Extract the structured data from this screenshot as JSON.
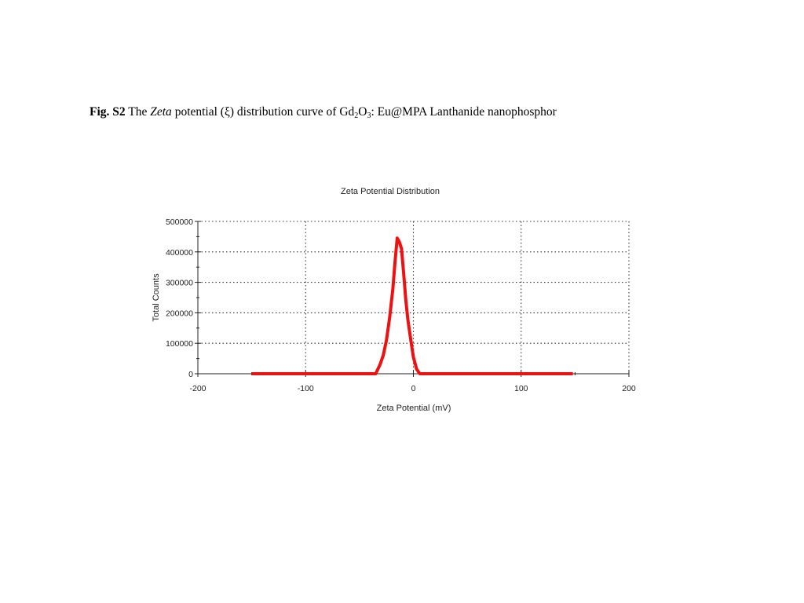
{
  "caption": {
    "figure_label": "Fig. S2",
    "text_1": "The",
    "italic_word": "Zeta",
    "text_2": "potential (ξ) distribution curve of Gd",
    "sub_1": "2",
    "text_3": "O",
    "sub_2": "3",
    "text_4": ": Eu@MPA Lanthanide nanophosphor"
  },
  "chart_data": {
    "type": "line",
    "title": "Zeta Potential Distribution",
    "xlabel": "Zeta Potential (mV)",
    "ylabel": "Total Counts",
    "xlim": [
      -200,
      200
    ],
    "ylim": [
      0,
      500000
    ],
    "xticks": [
      -200,
      -100,
      0,
      100,
      200
    ],
    "xtick_labels": [
      "-200",
      "-100",
      "0",
      "100",
      "200"
    ],
    "yticks": [
      0,
      100000,
      200000,
      300000,
      400000,
      500000
    ],
    "ytick_labels": [
      "0",
      "100000",
      "200000",
      "300000",
      "400000",
      "500000"
    ],
    "grid": true,
    "series": [
      {
        "color": "#ee1111",
        "x": [
          -150,
          -35,
          -31,
          -28,
          -25,
          -22,
          -19,
          -17,
          -15,
          -13,
          -11,
          -9,
          -7,
          -5,
          -2,
          0,
          3,
          6,
          10,
          50,
          100,
          148
        ],
        "y": [
          0,
          0,
          30000,
          60000,
          110000,
          185000,
          280000,
          370000,
          445000,
          432000,
          410000,
          330000,
          240000,
          175000,
          100000,
          55000,
          15000,
          0,
          0,
          0,
          0,
          0
        ]
      }
    ]
  }
}
